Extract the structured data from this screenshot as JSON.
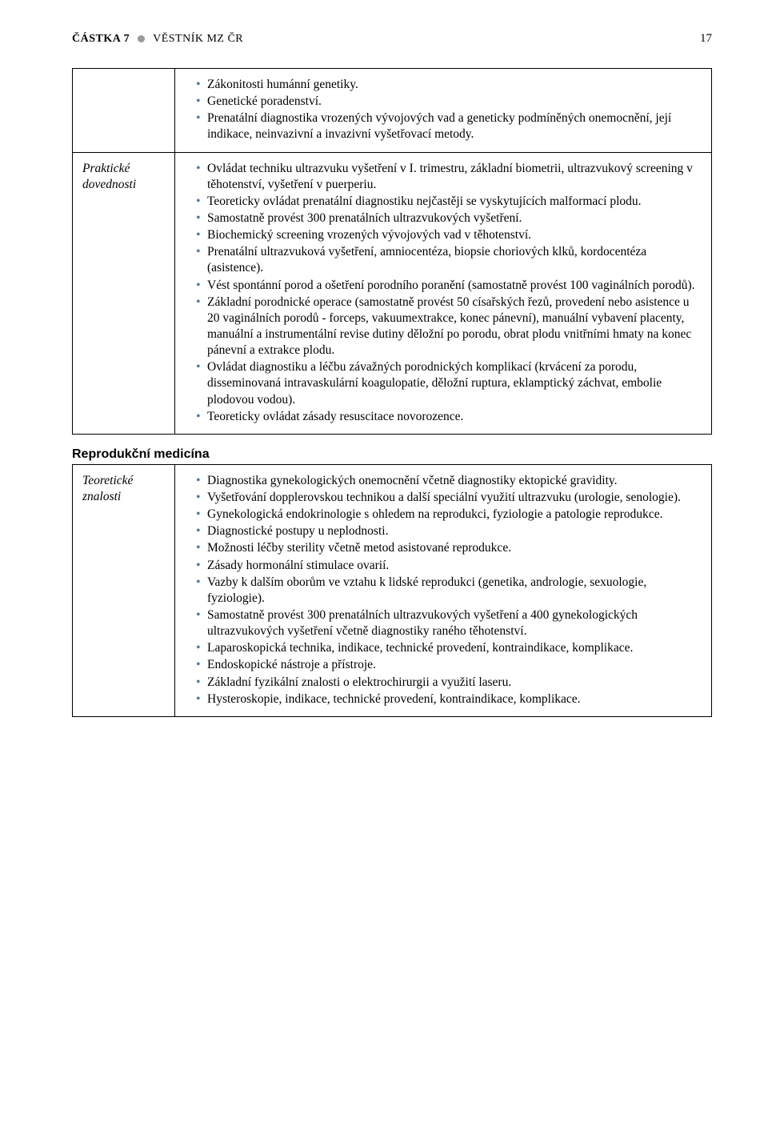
{
  "header": {
    "castka": "ČÁSTKA 7",
    "vestnik": "VĚSTNÍK MZ ČR",
    "page": "17"
  },
  "table1": {
    "row1": {
      "items": [
        "Zákonitosti humánní genetiky.",
        "Genetické poradenství.",
        "Prenatální diagnostika vrozených vývojových vad a geneticky podmíněných onemocnění, její indikace, neinvazivní a invazivní vyšetřovací metody."
      ]
    },
    "row2": {
      "label": "Praktické dovednosti",
      "items": [
        "Ovládat techniku ultrazvuku vyšetření v I. trimestru, základní biometrii, ultrazvukový screening v těhotenství, vyšetření v puerperiu.",
        "Teoreticky ovládat prenatální diagnostiku nejčastěji se vyskytujících malformací plodu.",
        "Samostatně provést 300 prenatálních ultrazvukových vyšetření.",
        "Biochemický screening vrozených vývojových vad v těhotenství.",
        "Prenatální ultrazvuková vyšetření, amniocentéza, biopsie choriových klků, kordocentéza (asistence).",
        "Vést spontánní porod a ošetření porodního poranění (samostatně provést 100 vaginálních porodů).",
        "Základní porodnické operace (samostatně provést 50 císařských řezů, provedení nebo asistence u 20 vaginálních porodů - forceps, vakuumextrakce, konec pánevní), manuální vybavení placenty, manuální a instrumentální revise dutiny děložní po porodu, obrat plodu vnitřními hmaty na konec pánevní a extrakce plodu.",
        "Ovládat diagnostiku a léčbu závažných porodnických komplikací (krvácení za porodu, disseminovaná intravaskulární koagulopatie, děložní ruptura, eklamptický záchvat, embolie plodovou vodou).",
        "Teoreticky ovládat zásady resuscitace novorozence."
      ]
    }
  },
  "sectionHeading": "Reprodukční medicína",
  "table2": {
    "row1": {
      "label": "Teoretické znalosti",
      "items": [
        "Diagnostika gynekologických onemocnění včetně diagnostiky ektopické gravidity.",
        "Vyšetřování dopplerovskou technikou a další speciální využití ultrazvuku (urologie, senologie).",
        "Gynekologická endokrinologie s ohledem na reprodukci, fyziologie a patologie reprodukce.",
        "Diagnostické postupy u neplodnosti.",
        "Možnosti léčby sterility včetně metod asistované reprodukce.",
        "Zásady hormonální stimulace ovarií.",
        "Vazby k dalším oborům ve vztahu k lidské reprodukci (genetika, andrologie, sexuologie, fyziologie).",
        "Samostatně provést 300 prenatálních ultrazvukových vyšetření a 400 gynekologických ultrazvukových vyšetření včetně diagnostiky raného těhotenství.",
        "Laparoskopická technika, indikace, technické provedení, kontraindikace, komplikace.",
        "Endoskopické nástroje a přístroje.",
        "Základní fyzikální znalosti o elektrochirurgii a využití laseru.",
        "Hysteroskopie, indikace, technické provedení, kontraindikace, komplikace."
      ]
    }
  }
}
